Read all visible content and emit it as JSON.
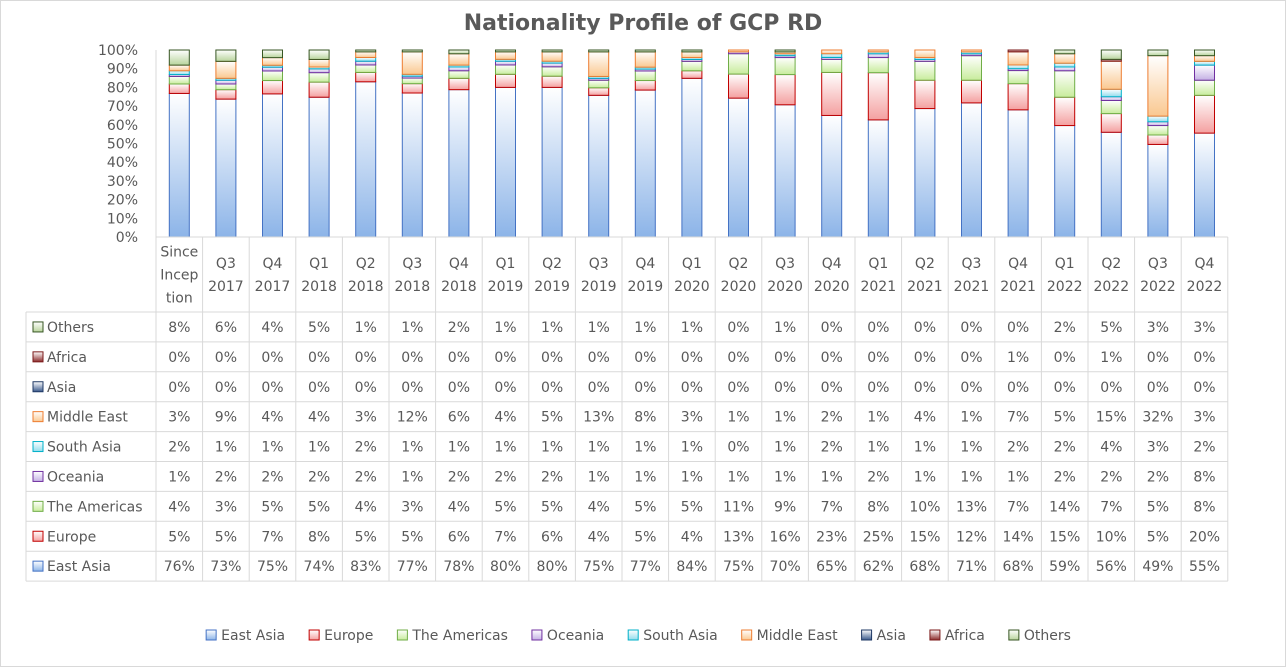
{
  "chart_data": {
    "type": "bar",
    "stacked": true,
    "title": "Nationality Profile of GCP RD",
    "ylim": [
      0,
      100
    ],
    "yticks": [
      "0%",
      "10%",
      "20%",
      "30%",
      "40%",
      "50%",
      "60%",
      "70%",
      "80%",
      "90%",
      "100%"
    ],
    "category_lines": [
      [
        "Since",
        "Incep",
        "tion"
      ],
      [
        "Q3",
        "2017"
      ],
      [
        "Q4",
        "2017"
      ],
      [
        "Q1",
        "2018"
      ],
      [
        "Q2",
        "2018"
      ],
      [
        "Q3",
        "2018"
      ],
      [
        "Q4",
        "2018"
      ],
      [
        "Q1",
        "2019"
      ],
      [
        "Q2",
        "2019"
      ],
      [
        "Q3",
        "2019"
      ],
      [
        "Q4",
        "2019"
      ],
      [
        "Q1",
        "2020"
      ],
      [
        "Q2",
        "2020"
      ],
      [
        "Q3",
        "2020"
      ],
      [
        "Q4",
        "2020"
      ],
      [
        "Q1",
        "2021"
      ],
      [
        "Q2",
        "2021"
      ],
      [
        "Q3",
        "2021"
      ],
      [
        "Q4",
        "2021"
      ],
      [
        "Q1",
        "2022"
      ],
      [
        "Q2",
        "2022"
      ],
      [
        "Q3",
        "2022"
      ],
      [
        "Q4",
        "2022"
      ]
    ],
    "series": [
      {
        "name": "East Asia",
        "color": "#8cb4e8",
        "values": [
          76,
          73,
          75,
          74,
          83,
          77,
          78,
          80,
          80,
          75,
          77,
          84,
          75,
          70,
          65,
          62,
          68,
          71,
          68,
          59,
          56,
          49,
          55
        ]
      },
      {
        "name": "Europe",
        "color": "#f4a0a0",
        "values": [
          5,
          5,
          7,
          8,
          5,
          5,
          6,
          7,
          6,
          4,
          5,
          4,
          13,
          16,
          23,
          25,
          15,
          12,
          14,
          15,
          10,
          5,
          20
        ]
      },
      {
        "name": "The Americas",
        "color": "#c8ec9c",
        "values": [
          4,
          3,
          5,
          5,
          4,
          3,
          4,
          5,
          5,
          4,
          5,
          5,
          11,
          9,
          7,
          8,
          10,
          13,
          7,
          14,
          7,
          5,
          8
        ]
      },
      {
        "name": "Oceania",
        "color": "#c4b0e4",
        "values": [
          1,
          2,
          2,
          2,
          2,
          1,
          2,
          2,
          2,
          1,
          1,
          1,
          1,
          1,
          1,
          2,
          1,
          1,
          1,
          2,
          2,
          2,
          8
        ]
      },
      {
        "name": "South Asia",
        "color": "#90dcec",
        "values": [
          2,
          1,
          1,
          1,
          2,
          1,
          1,
          1,
          1,
          1,
          1,
          1,
          0,
          1,
          2,
          1,
          1,
          1,
          2,
          2,
          4,
          3,
          2
        ]
      },
      {
        "name": "Middle East",
        "color": "#fac890",
        "values": [
          3,
          9,
          4,
          4,
          3,
          12,
          6,
          4,
          5,
          13,
          8,
          3,
          1,
          1,
          2,
          1,
          4,
          1,
          7,
          5,
          15,
          32,
          3
        ]
      },
      {
        "name": "Asia",
        "color": "#3a5a8c",
        "values": [
          0,
          0,
          0,
          0,
          0,
          0,
          0,
          0,
          0,
          0,
          0,
          0,
          0,
          0,
          0,
          0,
          0,
          0,
          0,
          0,
          0,
          0,
          0
        ]
      },
      {
        "name": "Africa",
        "color": "#8c2c2c",
        "values": [
          0,
          0,
          0,
          0,
          0,
          0,
          0,
          0,
          0,
          0,
          0,
          0,
          0,
          0,
          0,
          0,
          0,
          0,
          1,
          0,
          1,
          0,
          0
        ]
      },
      {
        "name": "Others",
        "color": "#b8d49c",
        "values": [
          8,
          6,
          4,
          5,
          1,
          1,
          2,
          1,
          1,
          1,
          1,
          1,
          0,
          1,
          0,
          0,
          0,
          0,
          0,
          2,
          5,
          3,
          3
        ]
      }
    ],
    "edge_colors": {
      "East Asia": "#4472c4",
      "Europe": "#c00000",
      "The Americas": "#70ad47",
      "Oceania": "#7030a0",
      "South Asia": "#00b0c8",
      "Middle East": "#ed7d31",
      "Asia": "#1f3864",
      "Africa": "#7b1a1a",
      "Others": "#375623"
    },
    "table_row_order": [
      "Others",
      "Africa",
      "Asia",
      "Middle East",
      "South Asia",
      "Oceania",
      "The Americas",
      "Europe",
      "East Asia"
    ],
    "value_suffix": "%",
    "grid": false,
    "legend_position": "bottom"
  }
}
